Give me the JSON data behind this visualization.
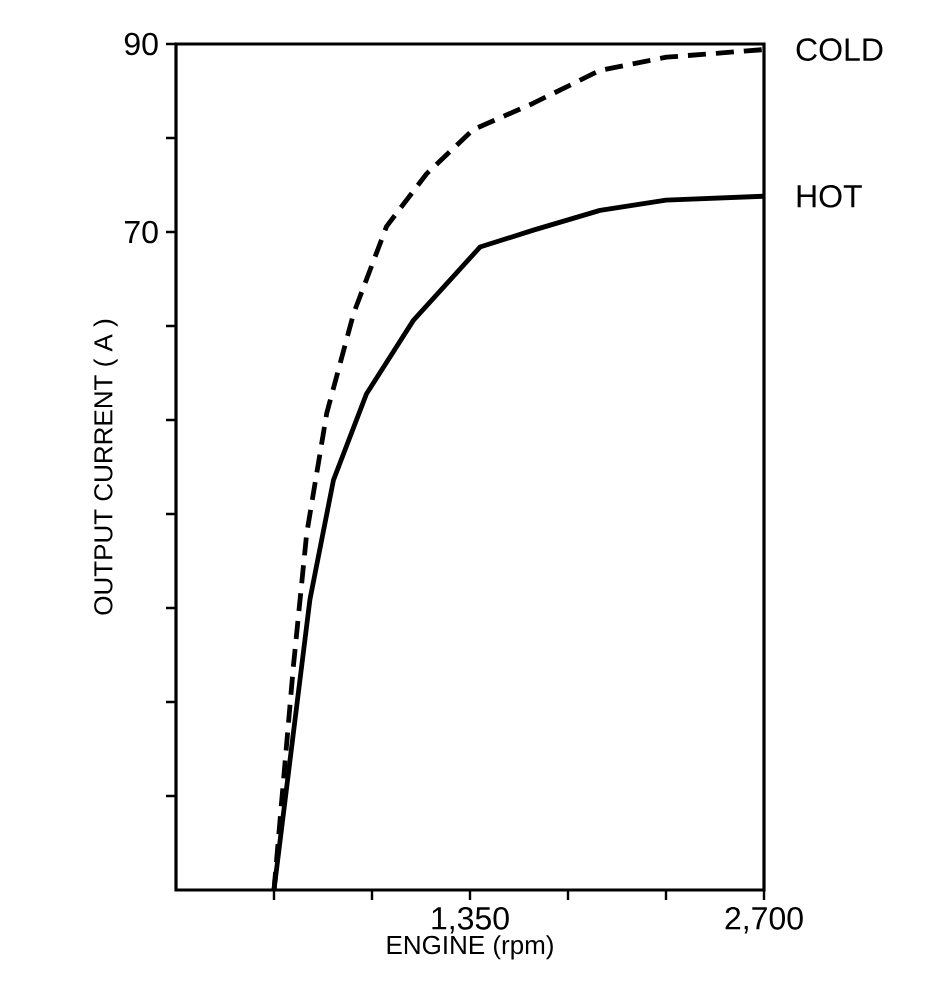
{
  "chart_data": {
    "type": "line",
    "xlabel": "ENGINE (rpm)",
    "ylabel": "OUTPUT CURRENT ( A )",
    "xlim": [
      0,
      2700
    ],
    "ylim": [
      0,
      90
    ],
    "xticks": [
      {
        "value": 450,
        "label": null
      },
      {
        "value": 900,
        "label": null
      },
      {
        "value": 1350,
        "label": "1,350"
      },
      {
        "value": 1800,
        "label": null
      },
      {
        "value": 2250,
        "label": null
      },
      {
        "value": 2700,
        "label": "2,700"
      }
    ],
    "yticks": [
      {
        "value": 10,
        "label": null
      },
      {
        "value": 20,
        "label": null
      },
      {
        "value": 30,
        "label": null
      },
      {
        "value": 40,
        "label": null
      },
      {
        "value": 50,
        "label": null
      },
      {
        "value": 60,
        "label": null
      },
      70,
      {
        "value": 80,
        "label": null
      },
      90
    ],
    "grid": false,
    "series": [
      {
        "name": "COLD",
        "color": "#000000",
        "line_style": "dashed",
        "x": [
          450,
          539,
          600,
          692,
          815,
          967,
          1151,
          1365,
          1641,
          1947,
          2253,
          2697
        ],
        "values": [
          0,
          23.8,
          37.9,
          50.7,
          61.3,
          70.6,
          76.2,
          80.9,
          83.7,
          87.2,
          88.6,
          89.4
        ]
      },
      {
        "name": "HOT",
        "color": "#000000",
        "line_style": "solid",
        "x": [
          450,
          539,
          615,
          723,
          875,
          1090,
          1396,
          1641,
          1947,
          2250,
          2697
        ],
        "values": [
          0,
          16.7,
          30.9,
          43.6,
          52.8,
          60.6,
          68.4,
          70.2,
          72.3,
          73.4,
          73.8
        ]
      }
    ]
  }
}
